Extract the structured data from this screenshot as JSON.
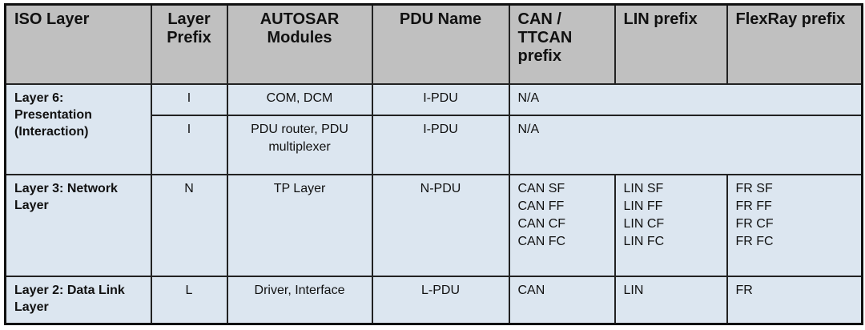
{
  "colors": {
    "header_bg": "#c0c0c0",
    "body_bg": "#dce6f0",
    "border": "#222222"
  },
  "headers": [
    "ISO Layer",
    "Layer Prefix",
    "AUTOSAR Modules",
    "PDU Name",
    "CAN / TTCAN prefix",
    "LIN prefix",
    "FlexRay prefix"
  ],
  "layer6": {
    "iso": "Layer 6: Presentation (Interaction)",
    "rows": [
      {
        "prefix": "I",
        "modules": "COM, DCM",
        "pdu": "I-PDU",
        "bus": "N/A"
      },
      {
        "prefix": "I",
        "modules": "PDU router, PDU multiplexer",
        "pdu": "I-PDU",
        "bus": "N/A"
      }
    ]
  },
  "layer3": {
    "iso": "Layer 3: Network Layer",
    "prefix": "N",
    "modules": "TP Layer",
    "pdu": "N-PDU",
    "can": [
      "CAN SF",
      "CAN FF",
      "CAN CF",
      "CAN FC"
    ],
    "lin": [
      "LIN SF",
      "LIN FF",
      "LIN CF",
      "LIN FC"
    ],
    "fr": [
      "FR SF",
      "FR FF",
      "FR CF",
      "FR FC"
    ]
  },
  "layer2": {
    "iso": "Layer 2: Data Link Layer",
    "prefix": "L",
    "modules": "Driver, Interface",
    "pdu": "L-PDU",
    "can": "CAN",
    "lin": "LIN",
    "fr": "FR"
  }
}
